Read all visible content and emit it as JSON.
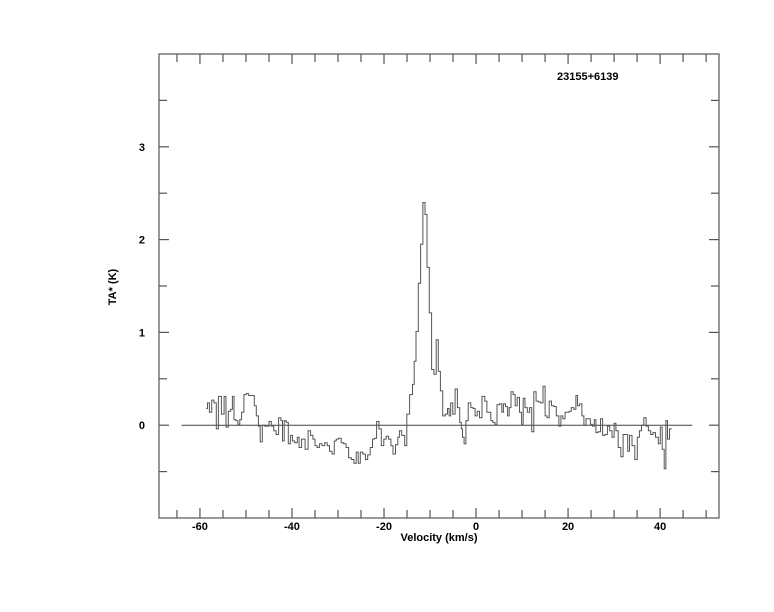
{
  "chart_data": {
    "type": "line",
    "style": "histogram",
    "title": "23155+6139",
    "xlabel": "Velocity (km/s)",
    "ylabel": "TA* (K)",
    "xlim": [
      -68.9,
      52.8
    ],
    "ylim": [
      -1,
      4
    ],
    "xticks": [
      -60,
      -40,
      -20,
      0,
      20,
      40
    ],
    "xticklabels": [
      "-60",
      "-40",
      "-20",
      "0",
      "20",
      "40"
    ],
    "xminor_step": 5,
    "yticks": [
      0,
      1,
      2,
      3
    ],
    "yticklabels": [
      "0",
      "1",
      "2",
      "3"
    ],
    "yminor_step": 0.5,
    "grid": false,
    "line_color": "#555555",
    "baseline": {
      "y": 0,
      "x": [
        -64,
        47
      ]
    },
    "points": [
      [
        -58.5,
        0.18
      ],
      [
        -58.2,
        0.24
      ],
      [
        -57.7,
        0.14
      ],
      [
        -57.2,
        0.27
      ],
      [
        -56.7,
        0.24
      ],
      [
        -56.2,
        -0.04
      ],
      [
        -55.8,
        0.31
      ],
      [
        -54.9,
        0.12
      ],
      [
        -54.6,
        0.31
      ],
      [
        -54.1,
        -0.02
      ],
      [
        -53.6,
        0.15
      ],
      [
        -53.1,
        0.17
      ],
      [
        -52.8,
        0.31
      ],
      [
        -52.4,
        0.06
      ],
      [
        -52.0,
        0.05
      ],
      [
        -51.5,
        0.01
      ],
      [
        -51.2,
        0.06
      ],
      [
        -50.7,
        0.14
      ],
      [
        -50.2,
        0.33
      ],
      [
        -49.7,
        0.34
      ],
      [
        -49.1,
        0.32
      ],
      [
        -48.4,
        0.32
      ],
      [
        -48.0,
        0.21
      ],
      [
        -47.5,
        0.1
      ],
      [
        -47.1,
        -0.01
      ],
      [
        -46.7,
        -0.18
      ],
      [
        -46.2,
        0.0
      ],
      [
        -45.7,
        -0.01
      ],
      [
        -45.2,
        -0.01
      ],
      [
        -44.8,
        0.04
      ],
      [
        -44.2,
        -0.01
      ],
      [
        -43.7,
        -0.06
      ],
      [
        -43.2,
        -0.1
      ],
      [
        -42.6,
        0.08
      ],
      [
        -42.2,
        0.05
      ],
      [
        -41.9,
        -0.17
      ],
      [
        -41.5,
        0.05
      ],
      [
        -41.0,
        0.03
      ],
      [
        -40.6,
        -0.2
      ],
      [
        -40.1,
        -0.11
      ],
      [
        -39.7,
        -0.17
      ],
      [
        -39.1,
        -0.19
      ],
      [
        -38.6,
        -0.13
      ],
      [
        -38.3,
        -0.24
      ],
      [
        -37.5,
        -0.15
      ],
      [
        -36.8,
        -0.26
      ],
      [
        -36.2,
        -0.06
      ],
      [
        -35.7,
        -0.11
      ],
      [
        -35.2,
        -0.15
      ],
      [
        -34.8,
        -0.22
      ],
      [
        -34.3,
        -0.24
      ],
      [
        -33.8,
        -0.2
      ],
      [
        -33.2,
        -0.22
      ],
      [
        -32.6,
        -0.19
      ],
      [
        -32.1,
        -0.22
      ],
      [
        -31.6,
        -0.28
      ],
      [
        -31.0,
        -0.31
      ],
      [
        -30.6,
        -0.17
      ],
      [
        -30.2,
        -0.15
      ],
      [
        -29.6,
        -0.14
      ],
      [
        -29.0,
        -0.19
      ],
      [
        -28.5,
        -0.2
      ],
      [
        -28.0,
        -0.24
      ],
      [
        -27.4,
        -0.35
      ],
      [
        -26.8,
        -0.37
      ],
      [
        -26.3,
        -0.41
      ],
      [
        -25.8,
        -0.29
      ],
      [
        -25.4,
        -0.41
      ],
      [
        -24.9,
        -0.29
      ],
      [
        -24.3,
        -0.31
      ],
      [
        -23.8,
        -0.37
      ],
      [
        -23.3,
        -0.32
      ],
      [
        -22.7,
        -0.24
      ],
      [
        -22.3,
        -0.15
      ],
      [
        -21.9,
        -0.14
      ],
      [
        -21.3,
        0.04
      ],
      [
        -20.9,
        -0.04
      ],
      [
        -20.3,
        -0.22
      ],
      [
        -19.8,
        -0.15
      ],
      [
        -19.3,
        -0.12
      ],
      [
        -18.7,
        -0.15
      ],
      [
        -18.3,
        -0.22
      ],
      [
        -17.8,
        -0.31
      ],
      [
        -17.2,
        -0.21
      ],
      [
        -16.8,
        -0.13
      ],
      [
        -16.5,
        -0.06
      ],
      [
        -15.8,
        -0.11
      ],
      [
        -15.2,
        -0.22
      ],
      [
        -14.9,
        0.12
      ],
      [
        -14.0,
        0.33
      ],
      [
        -13.6,
        0.44
      ],
      [
        -13.3,
        0.69
      ],
      [
        -12.8,
        1.01
      ],
      [
        -12.3,
        1.53
      ],
      [
        -11.8,
        1.95
      ],
      [
        -11.3,
        2.4
      ],
      [
        -10.9,
        2.27
      ],
      [
        -10.4,
        1.7
      ],
      [
        -9.9,
        1.21
      ],
      [
        -9.4,
        0.6
      ],
      [
        -8.9,
        0.55
      ],
      [
        -8.4,
        0.92
      ],
      [
        -8.0,
        0.58
      ],
      [
        -7.5,
        0.37
      ],
      [
        -7.0,
        0.1
      ],
      [
        -6.4,
        0.12
      ],
      [
        -6.0,
        0.18
      ],
      [
        -5.7,
        0.1
      ],
      [
        -5.3,
        0.24
      ],
      [
        -4.8,
        0.12
      ],
      [
        -4.3,
        0.39
      ],
      [
        -3.8,
        0.19
      ],
      [
        -3.3,
        0.03
      ],
      [
        -3.1,
        -0.04
      ],
      [
        -2.8,
        -0.13
      ],
      [
        -2.4,
        -0.2
      ],
      [
        -2.0,
        0.05
      ],
      [
        -1.4,
        0.24
      ],
      [
        -0.9,
        0.19
      ],
      [
        -0.4,
        0.18
      ],
      [
        0.0,
        0.1
      ],
      [
        0.5,
        0.15
      ],
      [
        1.0,
        0.08
      ],
      [
        1.6,
        0.31
      ],
      [
        2.2,
        0.26
      ],
      [
        2.5,
        0.14
      ],
      [
        3.0,
        0.14
      ],
      [
        3.4,
        0.05
      ],
      [
        3.9,
        0.03
      ],
      [
        4.3,
        0.01
      ],
      [
        4.8,
        0.22
      ],
      [
        5.4,
        0.23
      ],
      [
        5.8,
        0.14
      ],
      [
        6.1,
        0.23
      ],
      [
        6.7,
        0.2
      ],
      [
        7.0,
        0.1
      ],
      [
        7.4,
        0.19
      ],
      [
        7.8,
        0.36
      ],
      [
        8.3,
        0.33
      ],
      [
        8.7,
        0.21
      ],
      [
        9.2,
        0.3
      ],
      [
        9.7,
        0.14
      ],
      [
        10.1,
        0.01
      ],
      [
        10.4,
        0.29
      ],
      [
        10.9,
        0.19
      ],
      [
        11.4,
        0.14
      ],
      [
        11.9,
        0.19
      ],
      [
        12.3,
        -0.07
      ],
      [
        12.8,
        0.36
      ],
      [
        13.3,
        0.26
      ],
      [
        13.8,
        0.25
      ],
      [
        14.3,
        0.24
      ],
      [
        14.8,
        0.42
      ],
      [
        15.2,
        0.1
      ],
      [
        15.7,
        0.08
      ],
      [
        16.1,
        0.26
      ],
      [
        16.7,
        0.21
      ],
      [
        17.2,
        0.2
      ],
      [
        17.7,
        0.1
      ],
      [
        18.3,
        -0.01
      ],
      [
        18.6,
        0.1
      ],
      [
        19.1,
        0.07
      ],
      [
        19.6,
        0.14
      ],
      [
        20.1,
        0.14
      ],
      [
        20.4,
        0.15
      ],
      [
        21.0,
        0.19
      ],
      [
        21.5,
        0.17
      ],
      [
        21.9,
        0.32
      ],
      [
        22.2,
        0.21
      ],
      [
        22.8,
        0.23
      ],
      [
        23.2,
        0.1
      ],
      [
        23.7,
        0.0
      ],
      [
        24.1,
        0.07
      ],
      [
        24.6,
        0.07
      ],
      [
        25.1,
        0.01
      ],
      [
        25.5,
        -0.01
      ],
      [
        25.9,
        0.06
      ],
      [
        26.2,
        -0.08
      ],
      [
        26.8,
        -0.07
      ],
      [
        27.3,
        0.07
      ],
      [
        27.7,
        -0.11
      ],
      [
        28.3,
        -0.1
      ],
      [
        28.8,
        -0.01
      ],
      [
        29.3,
        -0.06
      ],
      [
        29.8,
        -0.13
      ],
      [
        30.2,
        0.02
      ],
      [
        30.6,
        -0.06
      ],
      [
        31.2,
        -0.24
      ],
      [
        31.7,
        -0.34
      ],
      [
        32.2,
        -0.1
      ],
      [
        32.8,
        -0.1
      ],
      [
        33.1,
        -0.28
      ],
      [
        33.6,
        -0.11
      ],
      [
        34.2,
        -0.22
      ],
      [
        34.8,
        -0.37
      ],
      [
        35.3,
        -0.13
      ],
      [
        35.7,
        -0.06
      ],
      [
        36.2,
        0.0
      ],
      [
        36.7,
        0.08
      ],
      [
        37.2,
        -0.01
      ],
      [
        37.7,
        -0.06
      ],
      [
        38.2,
        -0.1
      ],
      [
        38.7,
        -0.08
      ],
      [
        39.3,
        -0.13
      ],
      [
        39.9,
        -0.2
      ],
      [
        40.2,
        -0.02
      ],
      [
        40.7,
        -0.26
      ],
      [
        41.1,
        -0.47
      ],
      [
        41.4,
        0.05
      ],
      [
        41.8,
        -0.15
      ],
      [
        42.3,
        -0.04
      ]
    ]
  }
}
